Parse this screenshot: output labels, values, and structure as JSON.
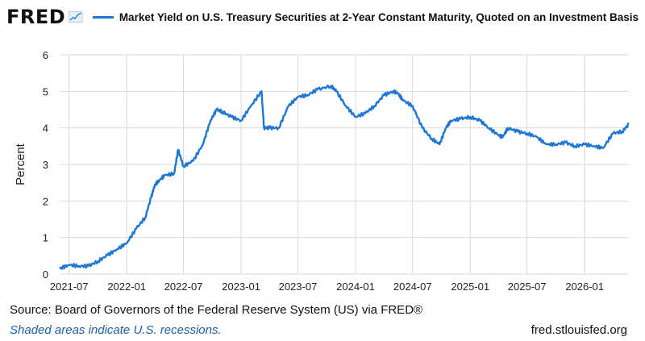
{
  "header": {
    "logo": "FRED",
    "logo_icon": "line-chart-icon",
    "legend_label": "Market Yield on U.S. Treasury Securities at 2-Year Constant Maturity, Quoted on an Investment Basis"
  },
  "footer": {
    "source_prefix": "Source: Board of Governors of the Federal Reserve System (US) via FRED",
    "source_mark": "®",
    "note": "Shaded areas indicate U.S. recessions.",
    "url": "fred.stlouisfed.org"
  },
  "colors": {
    "series": "#1f77d4",
    "grid": "#d9d9d9"
  },
  "chart_data": {
    "type": "line",
    "title": "",
    "xlabel": "",
    "ylabel": "Percent",
    "ylim": [
      0,
      6
    ],
    "xlim": [
      "2021-06-01",
      "2026-05-22"
    ],
    "yticks": [
      0,
      1,
      2,
      3,
      4,
      5,
      6
    ],
    "xticks": [
      "2021-07",
      "2022-01",
      "2022-07",
      "2023-01",
      "2023-07",
      "2024-01",
      "2024-07",
      "2025-01",
      "2025-07",
      "2026-01"
    ],
    "grid": true,
    "legend_position": "top",
    "series": [
      {
        "name": "Market Yield on U.S. Treasury Securities at 2-Year Constant Maturity, Quoted on an Investment Basis",
        "x": [
          "2021-06-01",
          "2021-07-01",
          "2021-08-01",
          "2021-09-01",
          "2021-10-01",
          "2021-11-01",
          "2021-12-01",
          "2022-01-01",
          "2022-02-01",
          "2022-03-01",
          "2022-03-20",
          "2022-04-01",
          "2022-04-20",
          "2022-05-01",
          "2022-06-01",
          "2022-06-14",
          "2022-07-01",
          "2022-08-01",
          "2022-09-01",
          "2022-09-25",
          "2022-10-15",
          "2022-11-01",
          "2022-12-01",
          "2023-01-01",
          "2023-02-01",
          "2023-03-07",
          "2023-03-15",
          "2023-04-01",
          "2023-05-01",
          "2023-06-01",
          "2023-07-01",
          "2023-08-01",
          "2023-09-01",
          "2023-10-15",
          "2023-11-01",
          "2023-12-01",
          "2024-01-01",
          "2024-02-01",
          "2024-03-01",
          "2024-04-01",
          "2024-04-30",
          "2024-05-15",
          "2024-06-01",
          "2024-07-01",
          "2024-08-01",
          "2024-09-01",
          "2024-09-25",
          "2024-10-15",
          "2024-11-01",
          "2024-12-01",
          "2025-01-01",
          "2025-02-01",
          "2025-03-01",
          "2025-04-01",
          "2025-04-15",
          "2025-05-01",
          "2025-06-01",
          "2025-07-01",
          "2025-08-01",
          "2025-09-01",
          "2025-10-01",
          "2025-11-01",
          "2025-12-01",
          "2026-01-01",
          "2026-02-01",
          "2026-03-01",
          "2026-04-01",
          "2026-05-01",
          "2026-05-22"
        ],
        "y": [
          0.15,
          0.25,
          0.22,
          0.22,
          0.35,
          0.52,
          0.68,
          0.85,
          1.25,
          1.55,
          2.1,
          2.45,
          2.6,
          2.7,
          2.75,
          3.4,
          2.95,
          3.1,
          3.55,
          4.2,
          4.5,
          4.45,
          4.3,
          4.2,
          4.6,
          5.0,
          4.0,
          4.0,
          4.0,
          4.6,
          4.85,
          4.9,
          5.05,
          5.15,
          5.0,
          4.6,
          4.3,
          4.4,
          4.6,
          4.9,
          5.0,
          4.95,
          4.75,
          4.6,
          4.0,
          3.7,
          3.55,
          4.0,
          4.2,
          4.25,
          4.3,
          4.2,
          4.0,
          3.8,
          3.75,
          4.0,
          3.9,
          3.85,
          3.75,
          3.55,
          3.55,
          3.6,
          3.5,
          3.55,
          3.5,
          3.45,
          3.85,
          3.9,
          4.1
        ]
      }
    ]
  }
}
